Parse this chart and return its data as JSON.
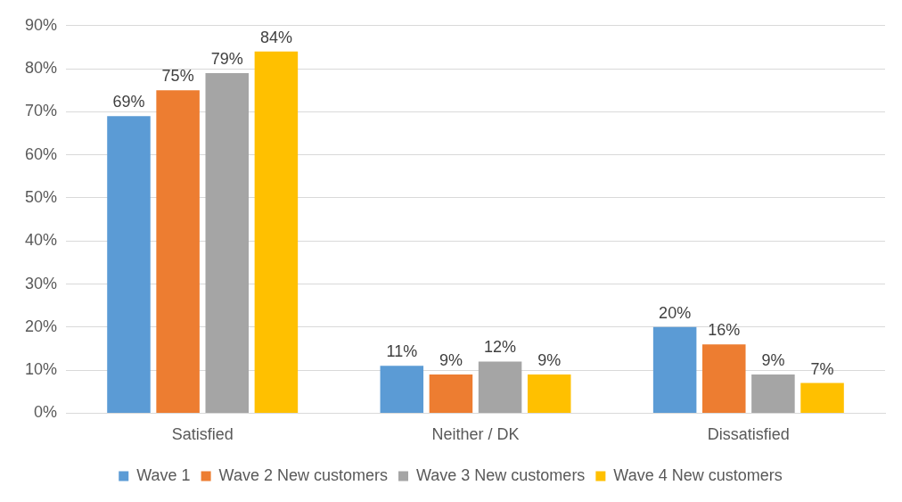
{
  "chart_data": {
    "type": "bar",
    "categories": [
      "Satisfied",
      "Neither / DK",
      "Dissatisfied"
    ],
    "series": [
      {
        "name": "Wave 1",
        "color": "#5b9bd5",
        "values": [
          69,
          11,
          20
        ],
        "value_labels": [
          "69%",
          "11%",
          "20%"
        ]
      },
      {
        "name": "Wave 2 New customers",
        "color": "#ed7d31",
        "values": [
          75,
          9,
          16
        ],
        "value_labels": [
          "75%",
          "9%",
          "16%"
        ]
      },
      {
        "name": "Wave 3 New customers",
        "color": "#a5a5a5",
        "values": [
          79,
          12,
          9
        ],
        "value_labels": [
          "79%",
          "12%",
          "9%"
        ]
      },
      {
        "name": "Wave 4 New customers",
        "color": "#ffc000",
        "values": [
          84,
          9,
          7
        ],
        "value_labels": [
          "84%",
          "9%",
          "7%"
        ]
      }
    ],
    "ylim": [
      0,
      90
    ],
    "yticks": [
      {
        "value": 0,
        "label": "0%"
      },
      {
        "value": 10,
        "label": "10%"
      },
      {
        "value": 20,
        "label": "20%"
      },
      {
        "value": 30,
        "label": "30%"
      },
      {
        "value": 40,
        "label": "40%"
      },
      {
        "value": 50,
        "label": "50%"
      },
      {
        "value": 60,
        "label": "60%"
      },
      {
        "value": 70,
        "label": "70%"
      },
      {
        "value": 80,
        "label": "80%"
      },
      {
        "value": 90,
        "label": "90%"
      }
    ],
    "grid": "y",
    "legend": "bottom"
  }
}
